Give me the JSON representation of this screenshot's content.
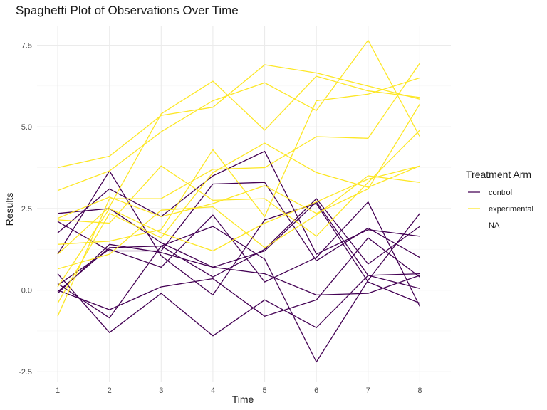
{
  "chart_data": {
    "type": "line",
    "title": "Spaghetti Plot of Observations Over Time",
    "xlabel": "Time",
    "ylabel": "Results",
    "x": [
      1,
      2,
      3,
      4,
      5,
      6,
      7,
      8
    ],
    "x_ticks": [
      "1",
      "2",
      "3",
      "4",
      "5",
      "6",
      "7",
      "8"
    ],
    "y_ticks": [
      {
        "value": -2.5,
        "label": "-2.5"
      },
      {
        "value": 0,
        "label": "0.0"
      },
      {
        "value": 2.5,
        "label": "2.5"
      },
      {
        "value": 5,
        "label": "5.0"
      },
      {
        "value": 7.5,
        "label": "7.5"
      }
    ],
    "xlim": [
      0.6,
      8.6
    ],
    "ylim": [
      -2.8,
      8.1
    ],
    "grid": true,
    "legend": {
      "title": "Treatment Arm",
      "position": "right",
      "entries": [
        {
          "label": "control",
          "color": "#440154"
        },
        {
          "label": "experimental",
          "color": "#FDE725"
        },
        {
          "label": "NA",
          "color": null
        }
      ]
    },
    "series": [
      {
        "group": "control",
        "values": [
          0.2,
          -0.85,
          1.35,
          0.4,
          1.25,
          2.8,
          0.8,
          1.95
        ]
      },
      {
        "group": "control",
        "values": [
          1.1,
          3.65,
          1.05,
          -0.15,
          2.15,
          2.65,
          0.25,
          -0.4
        ]
      },
      {
        "group": "control",
        "values": [
          2.1,
          1.2,
          1.2,
          3.25,
          3.3,
          0.9,
          1.9,
          1.0
        ]
      },
      {
        "group": "control",
        "values": [
          0.5,
          -1.3,
          -0.1,
          -1.4,
          -0.3,
          -1.15,
          0.45,
          0.5
        ]
      },
      {
        "group": "control",
        "values": [
          2.35,
          2.5,
          1.45,
          0.7,
          1.2,
          2.7,
          0.45,
          0.05
        ]
      },
      {
        "group": "control",
        "values": [
          0.0,
          -0.6,
          0.1,
          0.35,
          -0.8,
          -0.3,
          1.6,
          0.4
        ]
      },
      {
        "group": "control",
        "values": [
          1.75,
          3.1,
          2.25,
          3.5,
          4.25,
          1.1,
          1.85,
          1.65
        ]
      },
      {
        "group": "control",
        "values": [
          -0.1,
          1.4,
          1.15,
          0.7,
          0.5,
          -0.15,
          -0.1,
          0.45
        ]
      },
      {
        "group": "control",
        "values": [
          0.15,
          1.25,
          0.7,
          2.3,
          0.25,
          1.0,
          2.7,
          -0.5
        ]
      },
      {
        "group": "control",
        "values": [
          -0.05,
          1.3,
          1.35,
          1.95,
          0.95,
          -2.2,
          0.3,
          2.35
        ]
      },
      {
        "group": "experimental",
        "values": [
          3.75,
          4.1,
          5.35,
          5.6,
          6.9,
          6.65,
          6.25,
          5.85
        ]
      },
      {
        "group": "experimental",
        "values": [
          3.05,
          3.65,
          4.85,
          5.8,
          6.35,
          5.5,
          7.65,
          4.7
        ]
      },
      {
        "group": "experimental",
        "values": [
          1.1,
          2.55,
          5.4,
          6.4,
          4.9,
          6.55,
          6.1,
          5.9
        ]
      },
      {
        "group": "experimental",
        "values": [
          1.4,
          1.5,
          1.85,
          4.3,
          2.25,
          5.8,
          6.0,
          6.5
        ]
      },
      {
        "group": "experimental",
        "values": [
          2.15,
          2.05,
          3.8,
          2.75,
          2.8,
          1.65,
          3.3,
          4.9
        ]
      },
      {
        "group": "experimental",
        "values": [
          -0.8,
          2.8,
          2.8,
          3.7,
          3.75,
          4.7,
          4.65,
          6.95
        ]
      },
      {
        "group": "experimental",
        "values": [
          -0.4,
          2.35,
          1.6,
          3.6,
          4.5,
          3.6,
          3.15,
          3.8
        ]
      },
      {
        "group": "experimental",
        "values": [
          0.65,
          1.1,
          2.45,
          2.55,
          1.3,
          2.3,
          3.5,
          3.3
        ]
      },
      {
        "group": "experimental",
        "values": [
          0.1,
          2.5,
          1.75,
          1.2,
          2.05,
          2.7,
          3.4,
          3.8
        ]
      },
      {
        "group": "experimental",
        "values": [
          2.2,
          2.85,
          2.25,
          2.65,
          3.2,
          2.35,
          3.1,
          5.7
        ]
      }
    ]
  }
}
